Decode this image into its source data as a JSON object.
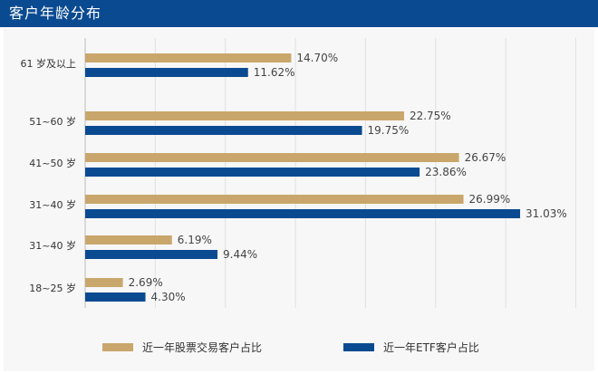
{
  "header": {
    "title": "客户年龄分布"
  },
  "colors": {
    "stock": "#c9a66b",
    "etf": "#0a4a91",
    "header": "#0a4a91",
    "grid": "#e0e0e0"
  },
  "chart_data": {
    "type": "bar",
    "orientation": "horizontal",
    "title": "客户年龄分布",
    "categories": [
      "61 岁及以上",
      "51~60 岁",
      "41~50 岁",
      "31~40 岁",
      "31~40 岁",
      "18~25 岁"
    ],
    "series": [
      {
        "name": "近一年股票交易客户占比",
        "values": [
          14.7,
          22.75,
          26.67,
          26.99,
          6.19,
          2.69
        ],
        "labels": [
          "14.70%",
          "22.75%",
          "26.67%",
          "26.99%",
          "6.19%",
          "2.69%"
        ]
      },
      {
        "name": "近一年ETF客户占比",
        "values": [
          11.62,
          19.75,
          23.86,
          31.03,
          9.44,
          4.3
        ],
        "labels": [
          "11.62%",
          "19.75%",
          "23.86%",
          "31.03%",
          "9.44%",
          "4.30%"
        ]
      }
    ],
    "xlim": [
      0,
      35
    ],
    "grid": true,
    "legend_position": "bottom"
  }
}
